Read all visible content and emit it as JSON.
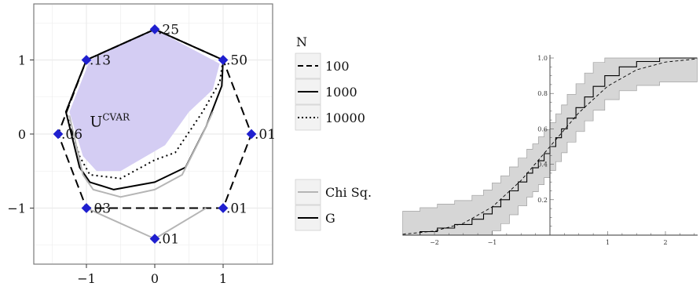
{
  "chart_data": [
    {
      "type": "line",
      "subtype": "polygon-uncertainty-sets",
      "xlim": [
        -1.75,
        1.75
      ],
      "ylim": [
        -1.6,
        1.55
      ],
      "xticks": [
        -1,
        0,
        1
      ],
      "xtick_labels": [
        "−1",
        "0",
        "1"
      ],
      "yticks": [
        -1,
        0,
        1
      ],
      "ytick_labels": [
        "−1",
        "0",
        "1"
      ],
      "grid": true,
      "vertices": [
        {
          "x": 0,
          "y": 1.414,
          "label": ".25"
        },
        {
          "x": 1,
          "y": 1,
          "label": ".50"
        },
        {
          "x": 1.414,
          "y": 0,
          "label": ".01"
        },
        {
          "x": 1,
          "y": -1,
          "label": ".01"
        },
        {
          "x": 0,
          "y": -1.414,
          "label": ".01"
        },
        {
          "x": -1,
          "y": -1,
          "label": ".03"
        },
        {
          "x": -1.414,
          "y": 0,
          "label": ".06"
        },
        {
          "x": -1,
          "y": 1,
          "label": ".13"
        }
      ],
      "region_label": "U",
      "region_label_sup": "CVAR",
      "region": [
        [
          -0.95,
          1.0
        ],
        [
          0.0,
          1.414
        ],
        [
          0.95,
          0.95
        ],
        [
          0.85,
          0.6
        ],
        [
          0.5,
          0.3
        ],
        [
          0.15,
          -0.15
        ],
        [
          -0.5,
          -0.5
        ],
        [
          -0.85,
          -0.5
        ],
        [
          -1.05,
          -0.3
        ],
        [
          -1.25,
          0.3
        ]
      ],
      "series": [
        {
          "name": "100",
          "group": "N",
          "style": "dashed",
          "points": [
            [
              -1,
              1
            ],
            [
              0,
              1.414
            ],
            [
              1,
              1
            ],
            [
              1.414,
              0
            ],
            [
              1,
              -1
            ],
            [
              -1,
              -1
            ],
            [
              -1.414,
              0
            ],
            [
              -1,
              1
            ]
          ]
        },
        {
          "name": "1000",
          "group": "N",
          "style": "solid",
          "points": [
            [
              -1,
              1
            ],
            [
              0,
              1.414
            ],
            [
              1,
              1
            ],
            [
              0.98,
              0.65
            ],
            [
              0.75,
              0.1
            ],
            [
              0.45,
              -0.45
            ],
            [
              0.0,
              -0.65
            ],
            [
              -0.6,
              -0.75
            ],
            [
              -0.95,
              -0.65
            ],
            [
              -1.1,
              -0.45
            ],
            [
              -1.3,
              0.3
            ],
            [
              -1,
              1
            ]
          ]
        },
        {
          "name": "10000",
          "group": "N",
          "style": "dotted",
          "points": [
            [
              -1,
              1
            ],
            [
              0,
              1.414
            ],
            [
              1,
              1
            ],
            [
              0.95,
              0.7
            ],
            [
              0.7,
              0.3
            ],
            [
              0.3,
              -0.25
            ],
            [
              0.0,
              -0.35
            ],
            [
              -0.5,
              -0.6
            ],
            [
              -0.95,
              -0.55
            ],
            [
              -1.1,
              -0.3
            ],
            [
              -1.3,
              0.3
            ],
            [
              -1,
              1
            ]
          ]
        },
        {
          "name": "Chi Sq.",
          "group": "stat",
          "style": "solid",
          "color": "#b5b5b5",
          "points": [
            [
              -1,
              -1
            ],
            [
              0,
              -1.414
            ],
            [
              0.75,
              -1.0
            ]
          ]
        },
        {
          "name": "Chi Sq. inner",
          "style": "solid",
          "color": "#b5b5b5",
          "points": [
            [
              -1.25,
              0.25
            ],
            [
              -1.05,
              -0.55
            ],
            [
              -0.9,
              -0.75
            ],
            [
              -0.5,
              -0.85
            ],
            [
              0.0,
              -0.75
            ],
            [
              0.4,
              -0.55
            ],
            [
              0.7,
              0.0
            ],
            [
              0.85,
              0.3
            ]
          ]
        }
      ],
      "legend": {
        "title": "N",
        "entries_n": [
          {
            "label": "100",
            "style": "dashed"
          },
          {
            "label": "1000",
            "style": "solid"
          },
          {
            "label": "10000",
            "style": "dotted"
          }
        ],
        "entries_stat": [
          {
            "label": "Chi Sq.",
            "color": "#b5b5b5"
          },
          {
            "label": "G",
            "color": "#000000"
          }
        ],
        "placement": "right"
      },
      "colors": {
        "region": "#d4cdf3",
        "marker": "#1f1fcf",
        "panel_border": "#7a7a7a",
        "grid": "#ebebeb"
      }
    },
    {
      "type": "line",
      "subtype": "ecdf-with-confidence-band",
      "xlim": [
        -2.55,
        2.55
      ],
      "ylim": [
        0,
        1.0
      ],
      "xticks": [
        -2,
        -1,
        1,
        2
      ],
      "xtick_labels": [
        "−2",
        "−1",
        "1",
        "2"
      ],
      "yticks": [
        0.2,
        0.4,
        0.6,
        0.8,
        1.0
      ],
      "ytick_labels": [
        "0.2",
        "0.4",
        "0.6",
        "0.8",
        "1.0"
      ],
      "series": [
        {
          "name": "empirical",
          "style": "step-solid",
          "x": [
            -2.55,
            -2.25,
            -1.95,
            -1.65,
            -1.35,
            -1.15,
            -1.0,
            -0.85,
            -0.7,
            -0.55,
            -0.4,
            -0.3,
            -0.2,
            -0.1,
            0.0,
            0.1,
            0.2,
            0.3,
            0.45,
            0.6,
            0.75,
            0.95,
            1.2,
            1.5,
            1.9,
            2.55
          ],
          "y": [
            0.0,
            0.02,
            0.04,
            0.06,
            0.09,
            0.12,
            0.16,
            0.2,
            0.25,
            0.3,
            0.35,
            0.38,
            0.42,
            0.46,
            0.5,
            0.55,
            0.6,
            0.66,
            0.72,
            0.78,
            0.84,
            0.9,
            0.95,
            0.98,
            1.0,
            1.0
          ]
        },
        {
          "name": "normal-cdf",
          "style": "dashed",
          "x": [
            -2.55,
            -2.0,
            -1.5,
            -1.0,
            -0.5,
            0.0,
            0.5,
            1.0,
            1.5,
            2.0,
            2.55
          ],
          "y": [
            0.005,
            0.023,
            0.067,
            0.159,
            0.309,
            0.5,
            0.691,
            0.841,
            0.933,
            0.977,
            0.995
          ]
        }
      ],
      "band": {
        "offset": 0.135
      },
      "colors": {
        "band": "#d6d6d6",
        "band_edge": "#a0a0a0"
      }
    }
  ]
}
